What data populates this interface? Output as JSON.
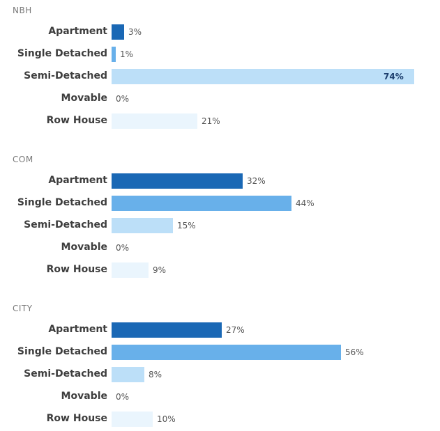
{
  "chart_data": {
    "type": "bar",
    "orientation": "horizontal",
    "categories": [
      "Apartment",
      "Single Detached",
      "Semi-Detached",
      "Movable",
      "Row House"
    ],
    "value_suffix": "%",
    "colors": [
      "#1a68b5",
      "#68b0ea",
      "#bcdff8",
      "#e4f2fc",
      "#eaf5fd"
    ],
    "groups": [
      {
        "name": "NBH",
        "values": [
          3,
          1,
          74,
          0,
          21
        ]
      },
      {
        "name": "COM",
        "values": [
          32,
          44,
          15,
          0,
          9
        ]
      },
      {
        "name": "CITY",
        "values": [
          27,
          56,
          8,
          0,
          10
        ]
      }
    ]
  }
}
